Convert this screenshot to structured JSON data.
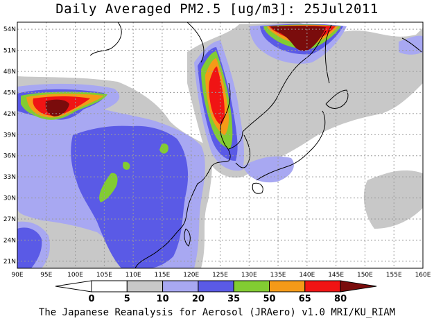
{
  "title": "Daily Averaged PM2.5 [ug/m3]: 25Jul2011",
  "footer": "The Japanese Reanalysis for Aerosol (JRAero) v1.0 MRI/KU_RIAM",
  "map": {
    "lon_range": [
      90,
      160
    ],
    "lat_range": [
      20,
      55
    ],
    "lon_ticks": [
      "90E",
      "95E",
      "100E",
      "105E",
      "110E",
      "115E",
      "120E",
      "125E",
      "130E",
      "135E",
      "140E",
      "145E",
      "150E",
      "155E",
      "160E"
    ],
    "lat_ticks": [
      "21N",
      "24N",
      "27N",
      "30N",
      "33N",
      "36N",
      "39N",
      "42N",
      "45N",
      "48N",
      "51N",
      "54N"
    ],
    "grid": true
  },
  "legend": {
    "bins": [
      {
        "label": "0",
        "color": "#ffffff"
      },
      {
        "label": "5",
        "color": "#c8c8c8"
      },
      {
        "label": "10",
        "color": "#a8a8f2"
      },
      {
        "label": "20",
        "color": "#5a5ae6"
      },
      {
        "label": "35",
        "color": "#82cc32"
      },
      {
        "label": "50",
        "color": "#f59a18"
      },
      {
        "label": "65",
        "color": "#f01414"
      },
      {
        "label": "80",
        "color": "#7a0c0c"
      }
    ],
    "below_color": "#ffffff"
  }
}
